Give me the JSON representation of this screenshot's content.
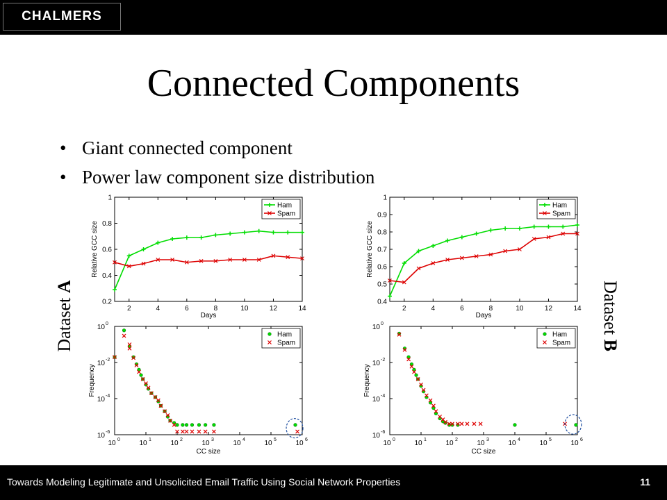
{
  "header": {
    "logo_text": "CHALMERS"
  },
  "title": "Connected Components",
  "bullets": [
    "Giant connected component",
    "Power law component size distribution"
  ],
  "side_labels": {
    "a_prefix": "Dataset ",
    "a_bold": "A",
    "b_prefix": "Dataset ",
    "b_bold": "B"
  },
  "footer": {
    "text": "Towards Modeling Legitimate and Unsolicited Email Traffic Using Social Network Properties",
    "page": "11"
  },
  "colors": {
    "ham": "#00dd00",
    "spam": "#dd0000",
    "circle": "#1f4fa0"
  },
  "chart_data": [
    {
      "type": "line",
      "xlabel": "Days",
      "ylabel": "Relative GCC size",
      "xlim": [
        1,
        14
      ],
      "ylim": [
        0.2,
        1
      ],
      "xticks": [
        2,
        4,
        6,
        8,
        10,
        12,
        14
      ],
      "yticks": [
        0.2,
        0.4,
        0.6,
        0.8,
        1
      ],
      "legend": "top-right",
      "series": [
        {
          "name": "Ham",
          "x": [
            1,
            2,
            3,
            4,
            5,
            6,
            7,
            8,
            9,
            10,
            11,
            12,
            13,
            14
          ],
          "y": [
            0.29,
            0.55,
            0.6,
            0.65,
            0.68,
            0.69,
            0.69,
            0.71,
            0.72,
            0.73,
            0.74,
            0.73,
            0.73,
            0.73
          ]
        },
        {
          "name": "Spam",
          "x": [
            1,
            2,
            3,
            4,
            5,
            6,
            7,
            8,
            9,
            10,
            11,
            12,
            13,
            14
          ],
          "y": [
            0.5,
            0.47,
            0.49,
            0.52,
            0.52,
            0.5,
            0.51,
            0.51,
            0.52,
            0.52,
            0.52,
            0.55,
            0.54,
            0.53
          ]
        }
      ]
    },
    {
      "type": "line",
      "xlabel": "Days",
      "ylabel": "Relative GCC size",
      "xlim": [
        1,
        14
      ],
      "ylim": [
        0.4,
        1
      ],
      "xticks": [
        2,
        4,
        6,
        8,
        10,
        12,
        14
      ],
      "yticks": [
        0.4,
        0.5,
        0.6,
        0.7,
        0.8,
        0.9,
        1
      ],
      "legend": "top-right",
      "series": [
        {
          "name": "Ham",
          "x": [
            1,
            2,
            3,
            4,
            5,
            6,
            7,
            8,
            9,
            10,
            11,
            12,
            13,
            14
          ],
          "y": [
            0.43,
            0.62,
            0.69,
            0.72,
            0.75,
            0.77,
            0.79,
            0.81,
            0.82,
            0.82,
            0.83,
            0.83,
            0.83,
            0.84
          ]
        },
        {
          "name": "Spam",
          "x": [
            1,
            2,
            3,
            4,
            5,
            6,
            7,
            8,
            9,
            10,
            11,
            12,
            13,
            14
          ],
          "y": [
            0.52,
            0.51,
            0.59,
            0.62,
            0.64,
            0.65,
            0.66,
            0.67,
            0.69,
            0.7,
            0.76,
            0.77,
            0.79,
            0.79
          ]
        }
      ]
    },
    {
      "type": "scatter",
      "xlabel": "CC size",
      "ylabel": "Frequency",
      "xscale": "log",
      "yscale": "log",
      "xlim": [
        1,
        1000000
      ],
      "ylim": [
        1e-06,
        1
      ],
      "xtick_exponents": [
        0,
        1,
        2,
        3,
        4,
        5,
        6
      ],
      "ytick_exponents": [
        0,
        -2,
        -4,
        -6
      ],
      "legend": "top-right",
      "annotation": "dashed circle around largest component",
      "series": [
        {
          "name": "Ham",
          "x": [
            1,
            2,
            3,
            4,
            5,
            6,
            7,
            8,
            10,
            12,
            15,
            20,
            25,
            30,
            40,
            50,
            60,
            80,
            100,
            150,
            200,
            300,
            500,
            800,
            1500,
            600000
          ],
          "y": [
            0.02,
            0.6,
            0.08,
            0.02,
            0.008,
            0.004,
            0.002,
            0.0012,
            0.0006,
            0.00035,
            0.0002,
            0.00012,
            7e-05,
            4e-05,
            2e-05,
            1e-05,
            6e-06,
            4.5e-06,
            3.5e-06,
            3.5e-06,
            3.5e-06,
            3.5e-06,
            3.5e-06,
            3.5e-06,
            3.5e-06,
            3.5e-06
          ]
        },
        {
          "name": "Spam",
          "x": [
            1,
            2,
            3,
            4,
            5,
            6,
            8,
            10,
            12,
            15,
            20,
            25,
            30,
            40,
            50,
            60,
            80,
            100,
            150,
            200,
            300,
            500,
            800,
            1500,
            3,
            700000
          ],
          "y": [
            0.02,
            0.3,
            0.06,
            0.018,
            0.007,
            0.003,
            0.0012,
            0.0007,
            0.0004,
            0.0002,
            0.00012,
            8e-05,
            4e-05,
            2e-05,
            1.2e-05,
            6e-06,
            3.5e-06,
            1.5e-06,
            1.5e-06,
            1.5e-06,
            1.5e-06,
            1.5e-06,
            1.5e-06,
            1.5e-06,
            0.1,
            1.5e-06
          ]
        }
      ]
    },
    {
      "type": "scatter",
      "xlabel": "CC size",
      "ylabel": "Frequency",
      "xscale": "log",
      "yscale": "log",
      "xlim": [
        1,
        1000000
      ],
      "ylim": [
        1e-06,
        1
      ],
      "xtick_exponents": [
        0,
        1,
        2,
        3,
        4,
        5,
        6
      ],
      "ytick_exponents": [
        0,
        -2,
        -4,
        -6
      ],
      "legend": "top-right",
      "annotation": "dashed circle around largest component",
      "series": [
        {
          "name": "Ham",
          "x": [
            2,
            3,
            4,
            5,
            6,
            7,
            8,
            10,
            12,
            15,
            20,
            25,
            30,
            40,
            50,
            60,
            80,
            100,
            150,
            10000,
            900000
          ],
          "y": [
            0.4,
            0.06,
            0.02,
            0.008,
            0.004,
            0.002,
            0.0012,
            0.0005,
            0.00025,
            0.00012,
            6e-05,
            3e-05,
            1.5e-05,
            8e-06,
            5.5e-06,
            4.5e-06,
            3.5e-06,
            3.5e-06,
            3.5e-06,
            3.5e-06,
            3.5e-06
          ]
        },
        {
          "name": "Spam",
          "x": [
            2,
            3,
            4,
            5,
            6,
            8,
            10,
            12,
            15,
            20,
            25,
            30,
            40,
            50,
            60,
            80,
            100,
            150,
            200,
            300,
            500,
            800,
            400000
          ],
          "y": [
            0.35,
            0.05,
            0.015,
            0.006,
            0.003,
            0.0012,
            0.0006,
            0.0003,
            0.00015,
            8e-05,
            4e-05,
            2e-05,
            1e-05,
            7e-06,
            5e-06,
            4e-06,
            4e-06,
            4e-06,
            4e-06,
            4e-06,
            4e-06,
            4e-06,
            4e-06
          ]
        }
      ]
    }
  ]
}
